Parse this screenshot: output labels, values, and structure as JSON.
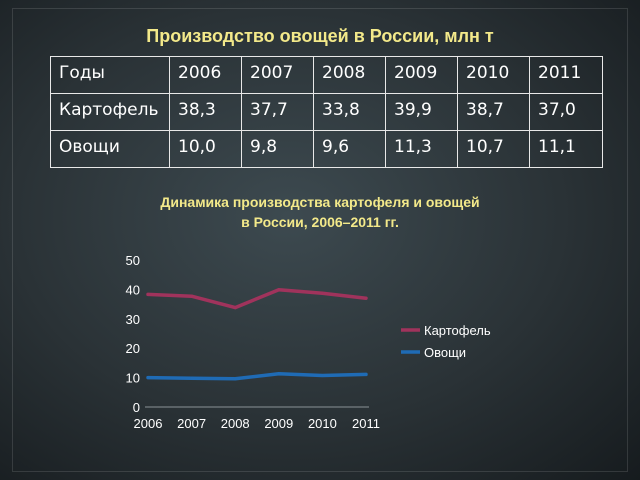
{
  "slide": {
    "title": "Производство овощей в России, млн т"
  },
  "table": {
    "header_label": "Годы",
    "years": [
      "2006",
      "2007",
      "2008",
      "2009",
      "2010",
      "2011"
    ],
    "rows": [
      {
        "label": "Картофель",
        "values": [
          "38,3",
          "37,7",
          "33,8",
          "39,9",
          "38,7",
          "37,0"
        ]
      },
      {
        "label": "Овощи",
        "values": [
          "10,0",
          "9,8",
          "9,6",
          "11,3",
          "10,7",
          "11,1"
        ]
      }
    ]
  },
  "chart_data": {
    "type": "line",
    "title_line1": "Динамика производства картофеля и овощей",
    "title_line2": "в России, 2006–2011 гг.",
    "x": [
      "2006",
      "2007",
      "2008",
      "2009",
      "2010",
      "2011"
    ],
    "ylim": [
      0,
      50
    ],
    "yticks": [
      0,
      10,
      20,
      30,
      40,
      50
    ],
    "grid": false,
    "legend_position": "right",
    "series": [
      {
        "name": "Картофель",
        "color": "#a0335c",
        "values": [
          38.3,
          37.7,
          33.8,
          39.9,
          38.7,
          37.0
        ]
      },
      {
        "name": "Овощи",
        "color": "#1f6bb5",
        "values": [
          10.0,
          9.8,
          9.6,
          11.3,
          10.7,
          11.1
        ]
      }
    ]
  }
}
